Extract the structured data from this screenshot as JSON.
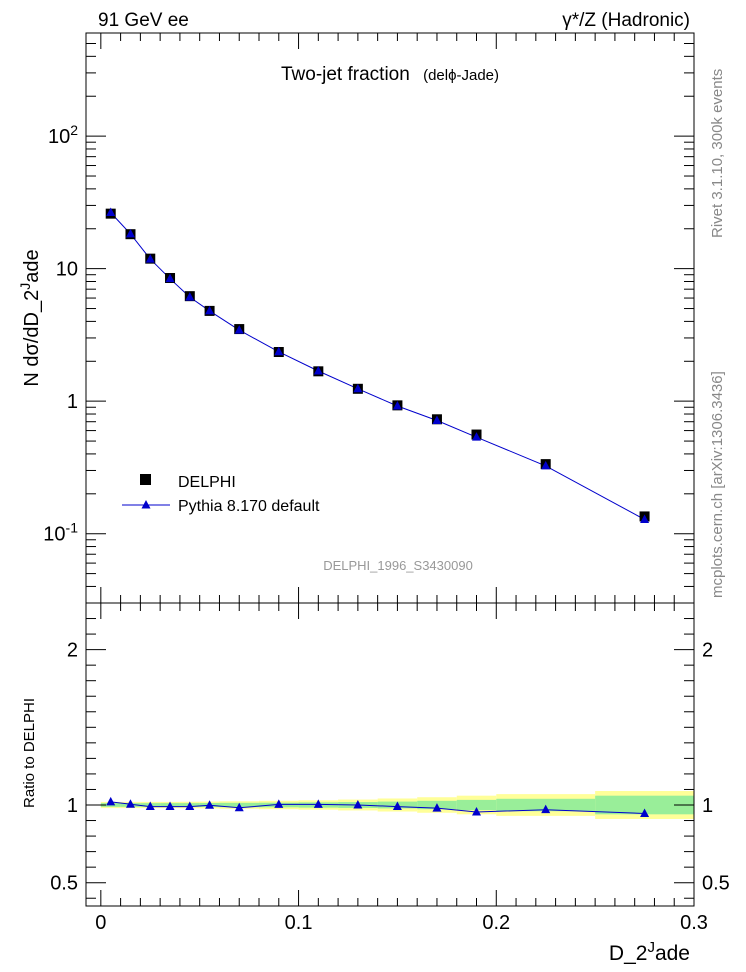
{
  "header": {
    "left": "91 GeV ee",
    "right": "γ*/Z (Hadronic)"
  },
  "side_labels": {
    "rivet": "Rivet 3.1.10,  300k events",
    "mcplots": "mcplots.cern.ch [arXiv:1306.3436]"
  },
  "chart_data": [
    {
      "type": "scatter",
      "title": "Two-jet fraction",
      "subtitle": "(delϕ-Jade)",
      "watermark": "DELPHI_1996_S3430090",
      "ylabel": "N dσ/dD_2^Jade",
      "yscale": "log",
      "ylim": [
        0.03,
        600
      ],
      "xlim": [
        -0.0075,
        0.3
      ],
      "y_ticks": [
        {
          "value": 0.1,
          "label": "10^-1"
        },
        {
          "value": 1,
          "label": "1"
        },
        {
          "value": 10,
          "label": "10"
        },
        {
          "value": 100,
          "label": "10^2"
        }
      ],
      "legend": {
        "placement": "bottom-left"
      },
      "series": [
        {
          "name": "DELPHI",
          "marker": "square",
          "color": "#000000",
          "x": [
            0.005,
            0.015,
            0.025,
            0.035,
            0.045,
            0.055,
            0.07,
            0.09,
            0.11,
            0.13,
            0.15,
            0.17,
            0.19,
            0.225,
            0.275
          ],
          "y": [
            26.0,
            18.2,
            11.9,
            8.5,
            6.2,
            4.8,
            3.5,
            2.35,
            1.68,
            1.24,
            0.93,
            0.73,
            0.56,
            0.335,
            0.135
          ]
        },
        {
          "name": "Pythia 8.170 default",
          "marker": "triangle",
          "color": "#0000cc",
          "x": [
            0.005,
            0.015,
            0.025,
            0.035,
            0.045,
            0.055,
            0.07,
            0.09,
            0.11,
            0.13,
            0.15,
            0.17,
            0.19,
            0.225,
            0.275
          ],
          "y": [
            26.5,
            18.3,
            11.8,
            8.4,
            6.1,
            4.8,
            3.44,
            2.36,
            1.69,
            1.24,
            0.92,
            0.715,
            0.535,
            0.325,
            0.128
          ]
        }
      ]
    },
    {
      "type": "line",
      "ylabel": "Ratio to DELPHI",
      "xlabel": "D_2^Jade",
      "ylim": [
        0.35,
        2.3
      ],
      "xlim": [
        -0.0075,
        0.3
      ],
      "y_ticks": [
        0.5,
        1,
        2
      ],
      "x_ticks": [
        0,
        0.1,
        0.2,
        0.3
      ],
      "bands": {
        "x_edges": [
          0,
          0.01,
          0.02,
          0.03,
          0.04,
          0.05,
          0.06,
          0.08,
          0.1,
          0.12,
          0.14,
          0.16,
          0.18,
          0.2,
          0.25,
          0.3
        ],
        "stat_halfwidth": [
          0.012,
          0.012,
          0.012,
          0.012,
          0.012,
          0.013,
          0.014,
          0.015,
          0.017,
          0.019,
          0.022,
          0.027,
          0.033,
          0.04,
          0.06
        ],
        "total_halfwidth": [
          0.02,
          0.02,
          0.02,
          0.02,
          0.021,
          0.022,
          0.024,
          0.027,
          0.03,
          0.035,
          0.042,
          0.05,
          0.06,
          0.07,
          0.09
        ],
        "stat_color": "#99ee99",
        "total_color": "#ffff99"
      },
      "series": [
        {
          "name": "Pythia 8.170 default",
          "color": "#0000cc",
          "x": [
            0.005,
            0.015,
            0.025,
            0.035,
            0.045,
            0.055,
            0.07,
            0.09,
            0.11,
            0.13,
            0.15,
            0.17,
            0.19,
            0.225,
            0.275
          ],
          "y": [
            1.02,
            1.005,
            0.99,
            0.99,
            0.99,
            0.998,
            0.982,
            1.004,
            1.004,
            1.0,
            0.99,
            0.98,
            0.955,
            0.97,
            0.945
          ]
        }
      ]
    }
  ]
}
